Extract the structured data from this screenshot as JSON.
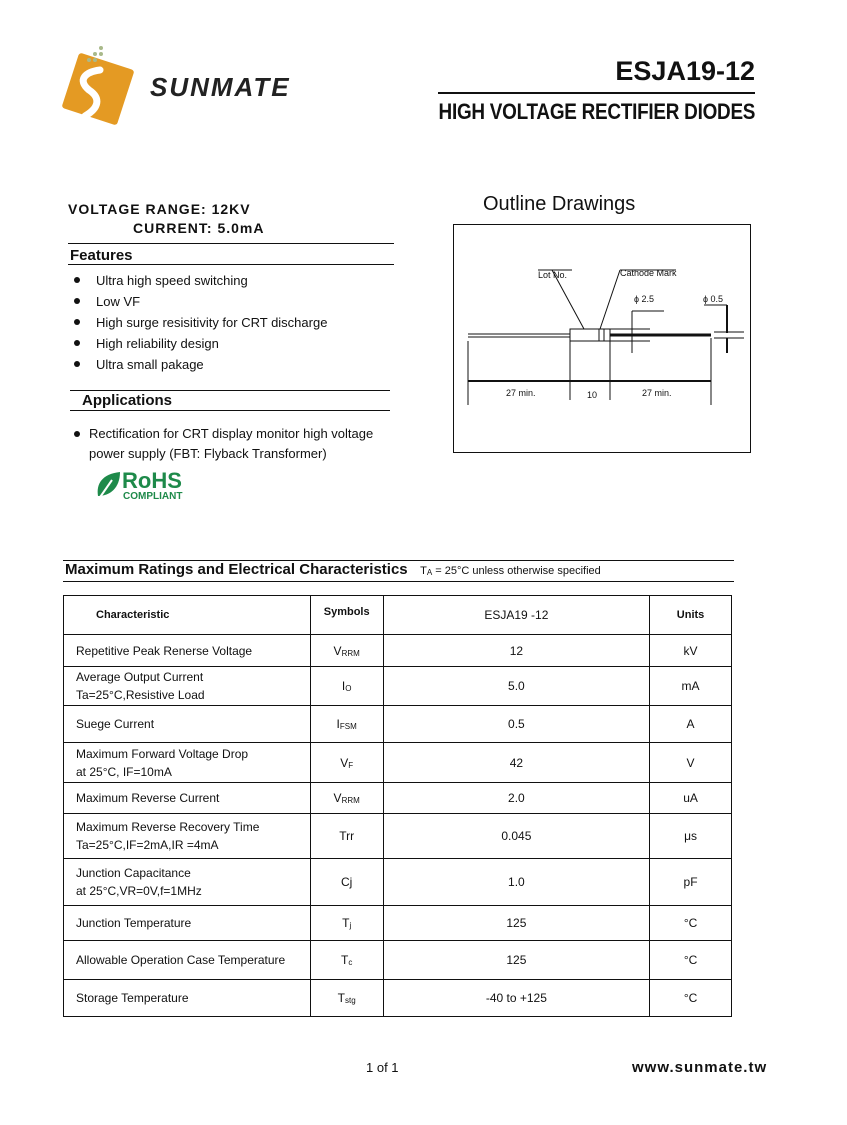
{
  "header": {
    "brand": "SUNMATE",
    "part_number": "ESJA19-12",
    "subtitle": "HIGH VOLTAGE RECTIFIER DIODES"
  },
  "specs": {
    "voltage_range": "VOLTAGE  RANGE:  12KV",
    "current": "CURRENT:   5.0mA"
  },
  "features": {
    "title": "Features",
    "items": [
      "Ultra high speed switching",
      "Low VF",
      "High surge resisitivity for CRT discharge",
      "High reliability design",
      "Ultra small pakage"
    ]
  },
  "applications": {
    "title": "Applications",
    "line1": "Rectification for CRT display monitor high voltage",
    "line2": "power supply (FBT: Flyback Transformer)"
  },
  "rohs": {
    "line1": "RoHS",
    "line2": "COMPLIANT",
    "color": "#1e8a4a"
  },
  "outline": {
    "title": "Outline  Drawings",
    "lot_no": "Lot No.",
    "cathode_mark": "Cathode Mark",
    "d_body": "ɸ 2.5",
    "d_lead": "ɸ 0.5",
    "dim_left": "27 min.",
    "dim_body": "10",
    "dim_right": "27 min."
  },
  "ratings": {
    "title": "Maximum Ratings and Electrical Characteristics",
    "condition_t": "T",
    "condition_sub": "A",
    "condition_rest": " = 25°C unless otherwise specified",
    "headers": {
      "characteristic": "Characteristic",
      "symbols": "Symbols",
      "value": "ESJA19 -12",
      "units": "Units"
    },
    "rows": [
      {
        "l1": "Repetitive Peak Renerse Voltage",
        "l2": "",
        "sym": "V",
        "sub": "RRM",
        "val": "12",
        "unit": "kV"
      },
      {
        "l1": "Average Output Current",
        "l2": "Ta=25°C,Resistive Load",
        "sym": "I",
        "sub": "O",
        "val": "5.0",
        "unit": "mA"
      },
      {
        "l1": "Suege Current",
        "l2": "",
        "sym": "I",
        "sub": "FSM",
        "val": "0.5",
        "unit": "A"
      },
      {
        "l1": "Maximum Forward Voltage Drop",
        "l2": " at 25°C, IF=10mA",
        "sym": "V",
        "sub": "F",
        "val": "42",
        "unit": "V"
      },
      {
        "l1": "Maximum Reverse Current",
        "l2": "",
        "sym": "V",
        "sub": "RRM",
        "val": "2.0",
        "unit": "uA"
      },
      {
        "l1": "Maximum Reverse Recovery Time",
        "l2": "Ta=25°C,IF=2mA,IR =4mA",
        "sym": "Trr",
        "sub": "",
        "val": "0.045",
        "unit": "μs"
      },
      {
        "l1": "Junction Capacitance",
        "l2": "at 25°C,VR=0V,f=1MHz",
        "sym": "Cj",
        "sub": "",
        "val": "1.0",
        "unit": "pF"
      },
      {
        "l1": "Junction Temperature",
        "l2": "",
        "sym": "T",
        "sub": "j",
        "val": "125",
        "unit": "°C"
      },
      {
        "l1": "Allowable Operation Case Temperature",
        "l2": "",
        "sym": "T",
        "sub": "c",
        "val": "125",
        "unit": "°C"
      },
      {
        "l1": "Storage Temperature",
        "l2": "",
        "sym": "T",
        "sub": "stg",
        "val": "-40  to +125",
        "unit": "°C"
      }
    ]
  },
  "footer": {
    "page": "1 of 1",
    "url": "www.sunmate.tw"
  }
}
